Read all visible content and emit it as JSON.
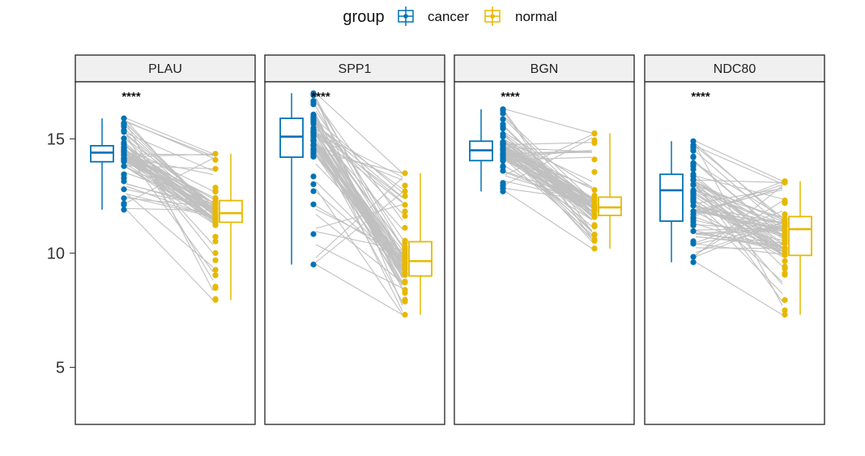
{
  "legend": {
    "title": "group",
    "entries": [
      {
        "label": "cancer",
        "color": "#0072B5"
      },
      {
        "label": "normal",
        "color": "#E7B800"
      }
    ]
  },
  "chart_data": {
    "type": "paired boxplot",
    "facet_strip_background": "#f0f0f0",
    "pair_line_color": "#c0c0c0",
    "grid": false,
    "legend_position": "top",
    "ylim": [
      2.5,
      17.5
    ],
    "yticks": [
      5,
      10,
      15
    ],
    "groups": [
      "cancer",
      "normal"
    ],
    "panels": [
      {
        "label": "PLAU",
        "significance": "****",
        "boxes": {
          "cancer": {
            "min": 11.9,
            "q1": 14.0,
            "median": 14.4,
            "q3": 14.7,
            "max": 15.9
          },
          "normal": {
            "min": 7.95,
            "q1": 11.35,
            "median": 11.75,
            "q3": 12.3,
            "max": 14.35
          }
        }
      },
      {
        "label": "SPP1",
        "significance": "****",
        "boxes": {
          "cancer": {
            "min": 9.5,
            "q1": 14.2,
            "median": 15.1,
            "q3": 15.9,
            "max": 17.0
          },
          "normal": {
            "min": 7.3,
            "q1": 9.0,
            "median": 9.65,
            "q3": 10.5,
            "max": 13.5
          }
        }
      },
      {
        "label": "BGN",
        "significance": "****",
        "boxes": {
          "cancer": {
            "min": 12.7,
            "q1": 14.05,
            "median": 14.5,
            "q3": 14.9,
            "max": 16.3
          },
          "normal": {
            "min": 10.2,
            "q1": 11.65,
            "median": 12.0,
            "q3": 12.45,
            "max": 15.25
          }
        }
      },
      {
        "label": "NDC80",
        "significance": "****",
        "boxes": {
          "cancer": {
            "min": 9.6,
            "q1": 11.4,
            "median": 12.75,
            "q3": 13.45,
            "max": 14.9
          },
          "normal": {
            "min": 7.3,
            "q1": 9.9,
            "median": 11.05,
            "q3": 11.6,
            "max": 13.15
          }
        }
      }
    ]
  }
}
